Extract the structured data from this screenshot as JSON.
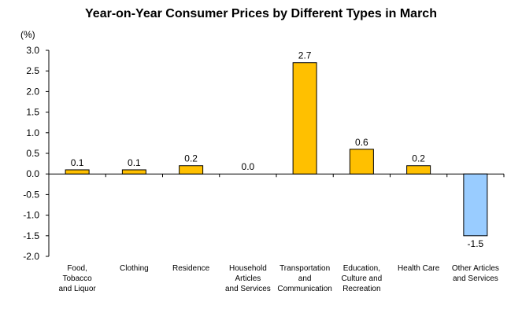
{
  "chart_data": {
    "type": "bar",
    "title": "Year-on-Year Consumer Prices by Different  Types in March",
    "unit": "(%)",
    "ylim": [
      -2.0,
      3.0
    ],
    "ytick_step": 0.5,
    "ytick_labels": [
      "3.0",
      "2.5",
      "2.0",
      "1.5",
      "1.0",
      "0.5",
      "0.0",
      "-0.5",
      "-1.0",
      "-1.5",
      "-2.0"
    ],
    "categories": [
      [
        "Food,",
        "Tobacco",
        "and Liquor"
      ],
      [
        "Clothing"
      ],
      [
        "Residence"
      ],
      [
        "Household",
        "Articles",
        "and Services"
      ],
      [
        "Transportation",
        "and",
        "Communication"
      ],
      [
        "Education,",
        "Culture and",
        "Recreation"
      ],
      [
        "Health Care"
      ],
      [
        "Other Articles",
        "and Services"
      ]
    ],
    "values": [
      0.1,
      0.1,
      0.2,
      0.0,
      2.7,
      0.6,
      0.2,
      -1.5
    ],
    "value_labels": [
      "0.1",
      "0.1",
      "0.2",
      "0.0",
      "2.7",
      "0.6",
      "0.2",
      "-1.5"
    ],
    "colors": {
      "positive": "#FFC000",
      "negative": "#99CCFF",
      "axis": "#000000"
    }
  }
}
